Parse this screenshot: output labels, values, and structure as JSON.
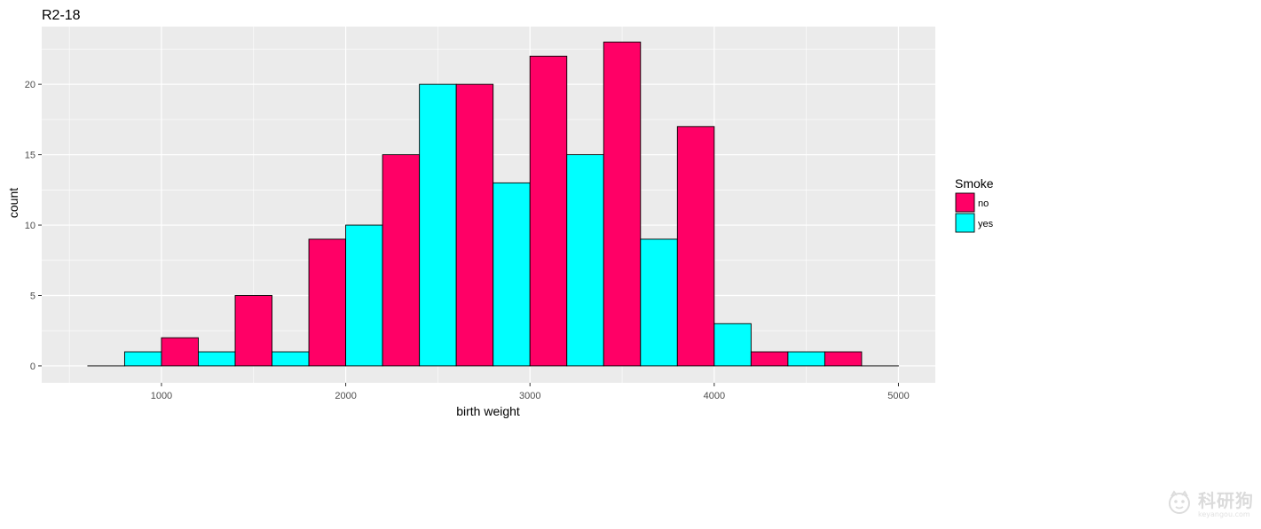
{
  "chart_data": {
    "type": "bar",
    "title": "R2-18",
    "xlabel": "birth weight",
    "ylabel": "count",
    "xlim": [
      350,
      5200
    ],
    "ylim": [
      -1.2,
      24.1
    ],
    "xticks": [
      "1000",
      "2000",
      "3000",
      "4000",
      "5000"
    ],
    "xtick_values": [
      1000,
      2000,
      3000,
      4000,
      5000
    ],
    "yticks": [
      "0",
      "5",
      "10",
      "15",
      "20"
    ],
    "ytick_values": [
      0,
      5,
      10,
      15,
      20
    ],
    "grid": true,
    "background": "#EBEBEB",
    "legend": {
      "title": "Smoke",
      "position": "right",
      "entries": [
        {
          "label": "no",
          "color": "#FF0066"
        },
        {
          "label": "yes",
          "color": "#00FFFF"
        }
      ]
    },
    "bars": [
      {
        "xmin": 600,
        "xmax": 800,
        "count": 0,
        "group": "no"
      },
      {
        "xmin": 800,
        "xmax": 1000,
        "count": 1,
        "group": "yes"
      },
      {
        "xmin": 1000,
        "xmax": 1200,
        "count": 2,
        "group": "no"
      },
      {
        "xmin": 1200,
        "xmax": 1400,
        "count": 1,
        "group": "yes"
      },
      {
        "xmin": 1400,
        "xmax": 1600,
        "count": 5,
        "group": "no"
      },
      {
        "xmin": 1600,
        "xmax": 1800,
        "count": 1,
        "group": "yes"
      },
      {
        "xmin": 1800,
        "xmax": 2000,
        "count": 9,
        "group": "no"
      },
      {
        "xmin": 2000,
        "xmax": 2200,
        "count": 10,
        "group": "yes"
      },
      {
        "xmin": 2200,
        "xmax": 2400,
        "count": 15,
        "group": "no"
      },
      {
        "xmin": 2400,
        "xmax": 2600,
        "count": 20,
        "group": "yes"
      },
      {
        "xmin": 2600,
        "xmax": 2800,
        "count": 20,
        "group": "no"
      },
      {
        "xmin": 2800,
        "xmax": 3000,
        "count": 13,
        "group": "yes"
      },
      {
        "xmin": 3000,
        "xmax": 3200,
        "count": 22,
        "group": "no"
      },
      {
        "xmin": 3200,
        "xmax": 3400,
        "count": 15,
        "group": "yes"
      },
      {
        "xmin": 3400,
        "xmax": 3600,
        "count": 23,
        "group": "no"
      },
      {
        "xmin": 3600,
        "xmax": 3800,
        "count": 9,
        "group": "yes"
      },
      {
        "xmin": 3800,
        "xmax": 4000,
        "count": 17,
        "group": "no"
      },
      {
        "xmin": 4000,
        "xmax": 4200,
        "count": 3,
        "group": "yes"
      },
      {
        "xmin": 4200,
        "xmax": 4400,
        "count": 1,
        "group": "no"
      },
      {
        "xmin": 4400,
        "xmax": 4600,
        "count": 1,
        "group": "yes"
      },
      {
        "xmin": 4600,
        "xmax": 4800,
        "count": 1,
        "group": "no"
      },
      {
        "xmin": 4800,
        "xmax": 5000,
        "count": 0,
        "group": "yes"
      }
    ]
  },
  "watermark": {
    "main": "科研狗",
    "sub": "keyangou.com",
    "logo_icon": "dog-face-icon"
  }
}
